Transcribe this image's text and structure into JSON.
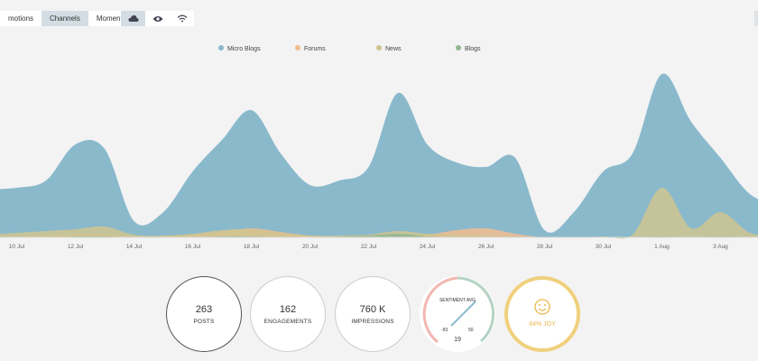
{
  "tabs": [
    "motions",
    "Channels",
    "Moments"
  ],
  "chart_data": {
    "type": "area",
    "categories": [
      null,
      "10 Jul",
      null,
      "12 Jul",
      null,
      "14 Jul",
      null,
      "16 Jul",
      null,
      "18 Jul",
      null,
      "20 Jul",
      null,
      "22 Jul",
      null,
      "24 Jul",
      null,
      "26 Jul",
      null,
      "28 Jul",
      null,
      "30 Jul",
      null,
      "1 Aug",
      null,
      "3 Aug",
      null,
      null
    ],
    "series": [
      {
        "name": "Micro Blogs",
        "color": "#8ab9cc",
        "values": [
          53,
          55,
          63,
          103,
          98,
          18,
          28,
          73,
          108,
          141,
          93,
          58,
          63,
          78,
          160,
          103,
          83,
          78,
          88,
          8,
          28,
          73,
          93,
          181,
          128,
          88,
          48,
          35
        ]
      },
      {
        "name": "Forums",
        "color": "#f2bc8f",
        "values": [
          0,
          1,
          2,
          3,
          3,
          1,
          1,
          3,
          6,
          10,
          6,
          2,
          1,
          1,
          2,
          3,
          8,
          10,
          4,
          0,
          0,
          0,
          0,
          0,
          0,
          0,
          0,
          0
        ]
      },
      {
        "name": "News",
        "color": "#cfc48f",
        "values": [
          3,
          5,
          7,
          9,
          12,
          3,
          2,
          4,
          8,
          9,
          5,
          2,
          2,
          3,
          7,
          4,
          3,
          2,
          1,
          0,
          0,
          1,
          3,
          55,
          10,
          28,
          5,
          2
        ]
      },
      {
        "name": "Blogs",
        "color": "#92b690",
        "values": [
          0,
          0,
          0,
          1,
          1,
          0,
          0,
          0,
          1,
          1,
          0,
          0,
          1,
          2,
          4,
          1,
          0,
          0,
          0,
          0,
          0,
          0,
          0,
          1,
          0,
          1,
          0,
          0
        ]
      }
    ]
  },
  "stats": [
    {
      "value": "263",
      "label": "POSTS"
    },
    {
      "value": "162",
      "label": "ENGAGEMENTS"
    },
    {
      "value": "760 K",
      "label": "IMPRESSIONS"
    }
  ],
  "gauge": {
    "title": "SENTIMENT AVG",
    "min": "-50",
    "max": "50",
    "value": "19"
  },
  "joy": "84% JOY"
}
